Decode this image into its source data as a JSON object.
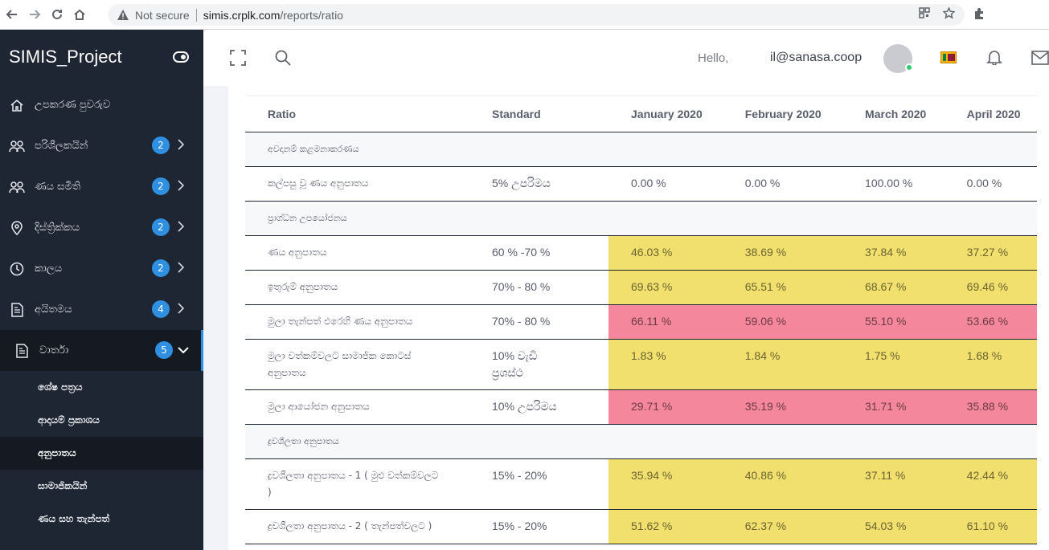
{
  "browser": {
    "security_text": "Not secure",
    "url_host": "simis.crplk.com",
    "url_path": "/reports/ratio"
  },
  "sidebar": {
    "brand": "SIMIS_Project",
    "items": [
      {
        "label": "උපකරණ පුවරුව",
        "icon": "home-icon",
        "badge": null
      },
      {
        "label": "පරිශීලකයින්",
        "icon": "users-icon",
        "badge": "2"
      },
      {
        "label": "ණය සමිති",
        "icon": "users-icon",
        "badge": "2"
      },
      {
        "label": "දිස්ත්‍රික්කය",
        "icon": "map-pin-icon",
        "badge": "2"
      },
      {
        "label": "කාලය",
        "icon": "clock-icon",
        "badge": "2"
      },
      {
        "label": "අයිතමය",
        "icon": "document-icon",
        "badge": "4"
      },
      {
        "label": "වාර්තා",
        "icon": "document-icon",
        "badge": "5"
      }
    ],
    "submenu": [
      {
        "label": "ශේෂ පත්‍රය"
      },
      {
        "label": "ආදායම් ප්‍රකාශය"
      },
      {
        "label": "අනුපාතය"
      },
      {
        "label": "සාමාජිකයින්"
      },
      {
        "label": "ණය සහ තැන්පත්"
      }
    ]
  },
  "header": {
    "hello": "Hello,",
    "email": "il@sanasa.coop"
  },
  "table": {
    "headers": [
      "Ratio",
      "Standard",
      "January 2020",
      "February 2020",
      "March 2020",
      "April 2020"
    ],
    "rows": [
      {
        "type": "section",
        "name": "අවදානම් කළමනාකරණය"
      },
      {
        "type": "row",
        "tone": "none",
        "name": "කල්පසු වූ ණය අනුපාතය",
        "standard": "5% උපරිමය",
        "values": [
          "0.00 %",
          "0.00 %",
          "100.00 %",
          "0.00 %"
        ]
      },
      {
        "type": "section",
        "name": "ප්‍රාග්ධන උපයෝජනය"
      },
      {
        "type": "row",
        "tone": "yellow",
        "name": "ණය අනුපාතය",
        "standard": "60 % -70 %",
        "values": [
          "46.03 %",
          "38.69 %",
          "37.84 %",
          "37.27 %"
        ]
      },
      {
        "type": "row",
        "tone": "yellow",
        "name": "ඉතුරුම් අනුපාතය",
        "standard": "70% - 80 %",
        "values": [
          "69.63 %",
          "65.51 %",
          "68.67 %",
          "69.46 %"
        ]
      },
      {
        "type": "row",
        "tone": "red",
        "name": "මුලා තැන්පත් එරෙහි ණය අනුපාතය",
        "standard": "70% - 80 %",
        "values": [
          "66.11 %",
          "59.06 %",
          "55.10 %",
          "53.66 %"
        ]
      },
      {
        "type": "row",
        "tone": "yellow",
        "tall": true,
        "name": "මුලා වත්කම්වලට සාමාජික කොටස් අනුපාතය",
        "standard": "10% වැඩි ප්‍රශස්ථ",
        "values": [
          "1.83 %",
          "1.84 %",
          "1.75 %",
          "1.68 %"
        ]
      },
      {
        "type": "row",
        "tone": "red",
        "name": "මුලා ආයෝජන අනුපාතය",
        "standard": "10% උපරිමය",
        "values": [
          "29.71 %",
          "35.19 %",
          "31.71 %",
          "35.88 %"
        ]
      },
      {
        "type": "section",
        "name": "ද්‍රවශීලතා අනුපාතය"
      },
      {
        "type": "row",
        "tone": "yellow",
        "tall": true,
        "name": "ද්‍රවශීලතා අනුපාතය - 1 ( මුළු වත්කම්වලට )",
        "standard": "15% - 20%",
        "values": [
          "35.94 %",
          "40.86 %",
          "37.11 %",
          "42.44 %"
        ]
      },
      {
        "type": "row",
        "tone": "yellow",
        "name": "ද්‍රවශීලතා අනුපාතය - 2 ( තැන්පත්වලට )",
        "standard": "15% - 20%",
        "values": [
          "51.62 %",
          "62.37 %",
          "54.03 %",
          "61.10 %"
        ]
      }
    ]
  },
  "colors": {
    "sidebar_bg": "#1f2633",
    "badge": "#2f8fe0",
    "yellow_cell": "#f1df6e",
    "red_cell": "#f4879b"
  }
}
